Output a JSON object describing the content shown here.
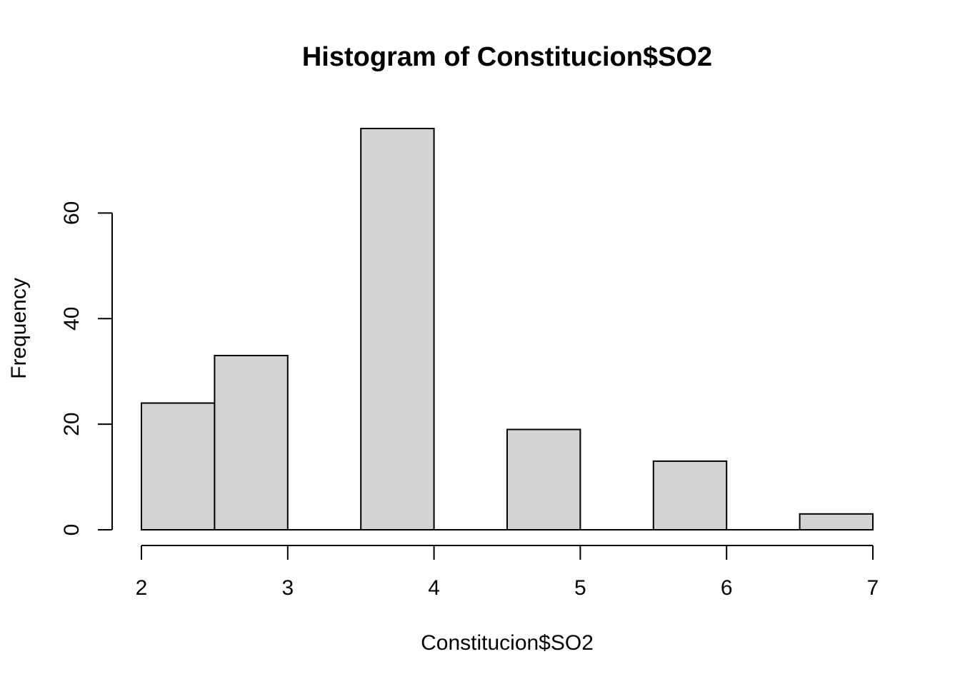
{
  "chart_data": {
    "type": "bar",
    "title": "Histogram of Constitucion$SO2",
    "xlabel": "Constitucion$SO2",
    "ylabel": "Frequency",
    "bins": [
      {
        "from": 2.0,
        "to": 2.5,
        "count": 24
      },
      {
        "from": 2.5,
        "to": 3.0,
        "count": 33
      },
      {
        "from": 3.0,
        "to": 3.5,
        "count": 0
      },
      {
        "from": 3.5,
        "to": 4.0,
        "count": 76
      },
      {
        "from": 4.0,
        "to": 4.5,
        "count": 0
      },
      {
        "from": 4.5,
        "to": 5.0,
        "count": 19
      },
      {
        "from": 5.0,
        "to": 5.5,
        "count": 0
      },
      {
        "from": 5.5,
        "to": 6.0,
        "count": 13
      },
      {
        "from": 6.0,
        "to": 6.5,
        "count": 0
      },
      {
        "from": 6.5,
        "to": 7.0,
        "count": 3
      }
    ],
    "xlim": [
      2,
      7
    ],
    "ylim": [
      0,
      76
    ],
    "x_ticks": [
      "2",
      "3",
      "4",
      "5",
      "6",
      "7"
    ],
    "y_ticks": [
      "0",
      "20",
      "40",
      "60"
    ],
    "grid": false,
    "colors": {
      "bar_fill": "#d3d3d3",
      "bar_stroke": "#000000",
      "axis": "#000000",
      "text": "#000000"
    }
  }
}
